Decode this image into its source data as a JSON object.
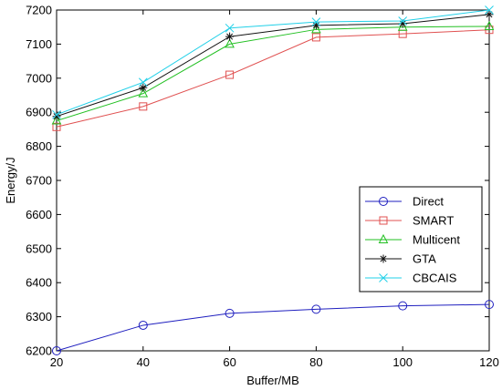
{
  "chart_data": {
    "type": "line",
    "xlabel": "Buffer/MB",
    "ylabel": "Energy/J",
    "x": [
      20,
      40,
      60,
      80,
      100,
      120
    ],
    "xlim": [
      20,
      120
    ],
    "ylim": [
      6200,
      7200
    ],
    "xticks": [
      20,
      40,
      60,
      80,
      100,
      120
    ],
    "yticks": [
      6200,
      6300,
      6400,
      6500,
      6600,
      6700,
      6800,
      6900,
      7000,
      7100,
      7200
    ],
    "grid": false,
    "legend_position": "right-middle",
    "series": [
      {
        "name": "Direct",
        "color": "#1f1fbf",
        "marker": "circle",
        "values": [
          6200,
          6275,
          6310,
          6322,
          6332,
          6336
        ]
      },
      {
        "name": "SMART",
        "color": "#e05050",
        "marker": "square",
        "values": [
          6857,
          6917,
          7010,
          7120,
          7130,
          7142
        ]
      },
      {
        "name": "Multicent",
        "color": "#22c022",
        "marker": "triangle",
        "values": [
          6875,
          6955,
          7100,
          7143,
          7150,
          7152
        ]
      },
      {
        "name": "GTA",
        "color": "#111111",
        "marker": "asterisk",
        "values": [
          6888,
          6972,
          7122,
          7155,
          7160,
          7187
        ]
      },
      {
        "name": "CBCAIS",
        "color": "#20d0e8",
        "marker": "x",
        "values": [
          6893,
          6988,
          7147,
          7165,
          7168,
          7200
        ]
      }
    ]
  }
}
